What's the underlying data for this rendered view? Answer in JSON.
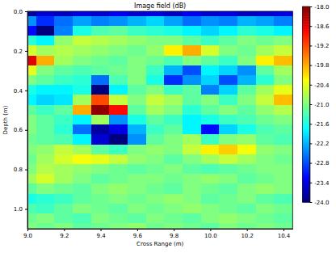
{
  "chart_data": {
    "type": "heatmap",
    "title": "Image field (dB)",
    "x_label": "Cross Range (m)",
    "y_label": "Depth (m)",
    "xlim": [
      9.0,
      10.45
    ],
    "ylim": [
      0,
      1.1
    ],
    "xticks": [
      {
        "value": 9,
        "label": "9.0"
      },
      9.2,
      9.4,
      9.6,
      9.8,
      {
        "value": 10,
        "label": "10.0"
      },
      10.2,
      10.4
    ],
    "yticks": [
      {
        "value": 0,
        "label": "0.0"
      },
      0.2,
      0.4,
      0.6,
      0.8,
      {
        "value": 1,
        "label": "1.0"
      }
    ],
    "x": [
      9.0,
      9.1,
      9.2,
      9.3,
      9.4,
      9.5,
      9.6,
      9.7,
      9.8,
      9.9,
      10.0,
      10.1,
      10.2,
      10.3,
      10.4
    ],
    "y": [
      0.0,
      0.05,
      0.1,
      0.15,
      0.2,
      0.25,
      0.3,
      0.35,
      0.4,
      0.45,
      0.5,
      0.55,
      0.6,
      0.65,
      0.7,
      0.75,
      0.8,
      0.85,
      0.9,
      0.95,
      1.0,
      1.05,
      1.1
    ],
    "values": [
      [
        -23.8,
        -23.5,
        -23.6,
        -23.4,
        -23.5,
        -23.3,
        -23.5,
        -23.4,
        -23.6,
        -23.3,
        -23.5,
        -23.4,
        -23.6,
        -23.5,
        -23.4
      ],
      [
        -22.4,
        -23.0,
        -22.6,
        -22.3,
        -22.5,
        -22.4,
        -22.2,
        -22.0,
        -22.3,
        -22.6,
        -22.4,
        -22.5,
        -22.2,
        -22.3,
        -22.5
      ],
      [
        -23.2,
        -24.0,
        -22.5,
        -21.6,
        -21.3,
        -21.2,
        -21.4,
        -21.5,
        -21.6,
        -21.8,
        -22.0,
        -21.8,
        -21.5,
        -21.6,
        -21.8
      ],
      [
        -21.5,
        -21.8,
        -20.9,
        -20.6,
        -20.7,
        -20.8,
        -20.9,
        -21.0,
        -21.0,
        -21.2,
        -21.4,
        -21.2,
        -21.0,
        -21.1,
        -21.0
      ],
      [
        -20.5,
        -20.8,
        -20.7,
        -20.8,
        -20.9,
        -21.0,
        -21.1,
        -20.9,
        -20.2,
        -19.8,
        -20.5,
        -21.0,
        -21.1,
        -20.8,
        -20.6
      ],
      [
        -18.6,
        -19.8,
        -20.8,
        -21.0,
        -21.1,
        -21.2,
        -21.0,
        -21.1,
        -21.3,
        -21.0,
        -21.2,
        -21.4,
        -21.0,
        -20.2,
        -19.9
      ],
      [
        -20.4,
        -21.0,
        -21.2,
        -21.3,
        -21.2,
        -21.1,
        -21.0,
        -21.4,
        -22.2,
        -22.8,
        -21.8,
        -22.0,
        -22.4,
        -21.2,
        -20.8
      ],
      [
        -21.0,
        -21.2,
        -21.4,
        -21.5,
        -22.6,
        -21.3,
        -21.0,
        -21.6,
        -23.0,
        -22.4,
        -22.0,
        -22.8,
        -22.2,
        -21.5,
        -21.0
      ],
      [
        -21.6,
        -21.8,
        -21.8,
        -21.6,
        -24.0,
        -21.8,
        -21.2,
        -21.0,
        -21.4,
        -21.2,
        -22.5,
        -22.0,
        -21.2,
        -20.8,
        -20.4
      ],
      [
        -21.8,
        -22.0,
        -21.9,
        -20.8,
        -19.2,
        -20.6,
        -21.0,
        -20.6,
        -20.8,
        -21.2,
        -21.0,
        -21.4,
        -21.0,
        -20.6,
        -19.9
      ],
      [
        -21.2,
        -21.4,
        -21.2,
        -19.8,
        -18.1,
        -18.8,
        -21.2,
        -20.8,
        -21.0,
        -21.5,
        -21.2,
        -21.0,
        -21.2,
        -20.9,
        -20.7
      ],
      [
        -21.0,
        -21.2,
        -21.4,
        -21.8,
        -20.8,
        -22.4,
        -21.6,
        -21.2,
        -21.4,
        -21.8,
        -21.6,
        -21.4,
        -21.3,
        -21.1,
        -21.0
      ],
      [
        -21.0,
        -21.2,
        -21.5,
        -22.6,
        -23.8,
        -23.4,
        -22.2,
        -21.4,
        -21.2,
        -21.8,
        -23.2,
        -22.0,
        -21.6,
        -21.3,
        -21.2
      ],
      [
        -21.1,
        -21.2,
        -21.3,
        -21.8,
        -23.5,
        -24.0,
        -22.4,
        -21.2,
        -21.0,
        -20.8,
        -21.4,
        -21.0,
        -20.9,
        -21.2,
        -21.3
      ],
      [
        -21.0,
        -20.9,
        -20.6,
        -20.8,
        -21.2,
        -21.4,
        -21.0,
        -20.9,
        -21.0,
        -20.6,
        -20.2,
        -20.0,
        -20.3,
        -20.9,
        -21.0
      ],
      [
        -21.1,
        -20.8,
        -20.5,
        -20.3,
        -20.4,
        -20.6,
        -20.9,
        -21.0,
        -21.2,
        -21.0,
        -20.8,
        -20.6,
        -20.8,
        -21.0,
        -21.1
      ],
      [
        -21.0,
        -20.7,
        -20.8,
        -20.9,
        -21.0,
        -21.1,
        -21.2,
        -21.1,
        -21.0,
        -21.2,
        -21.3,
        -21.2,
        -21.1,
        -21.0,
        -21.0
      ],
      [
        -20.8,
        -20.5,
        -20.8,
        -21.0,
        -21.2,
        -21.1,
        -21.0,
        -21.0,
        -21.1,
        -21.0,
        -20.9,
        -21.0,
        -21.2,
        -21.1,
        -21.0
      ],
      [
        -21.2,
        -21.0,
        -21.1,
        -21.2,
        -21.0,
        -20.9,
        -21.0,
        -21.1,
        -21.2,
        -21.0,
        -21.1,
        -21.2,
        -21.0,
        -20.9,
        -21.0
      ],
      [
        -21.6,
        -21.5,
        -21.4,
        -21.2,
        -21.1,
        -21.0,
        -21.1,
        -21.0,
        -20.9,
        -21.0,
        -21.2,
        -21.1,
        -21.0,
        -21.2,
        -21.3
      ],
      [
        -21.3,
        -21.4,
        -21.2,
        -21.0,
        -21.1,
        -21.2,
        -21.0,
        -21.1,
        -21.0,
        -20.9,
        -21.0,
        -21.1,
        -21.2,
        -21.0,
        -21.1
      ],
      [
        -21.1,
        -21.0,
        -21.2,
        -21.3,
        -21.0,
        -21.1,
        -21.2,
        -21.0,
        -21.1,
        -21.2,
        -21.0,
        -20.9,
        -21.0,
        -21.1,
        -21.2
      ],
      [
        -21.0,
        -21.1,
        -21.0,
        -21.2,
        -21.1,
        -21.0,
        -20.9,
        -21.1,
        -21.0,
        -21.1,
        -21.2,
        -21.0,
        -21.1,
        -21.0,
        -21.1
      ]
    ],
    "colorbar": {
      "range": [
        -24,
        -18
      ],
      "ticks": [
        {
          "value": -18,
          "label": "-18.0"
        },
        -18.6,
        -19.2,
        -19.8,
        -20.4,
        {
          "value": -21,
          "label": "-21.0"
        },
        -21.6,
        -22.2,
        -22.8,
        -23.4,
        {
          "value": -24,
          "label": "-24.0"
        }
      ]
    }
  }
}
